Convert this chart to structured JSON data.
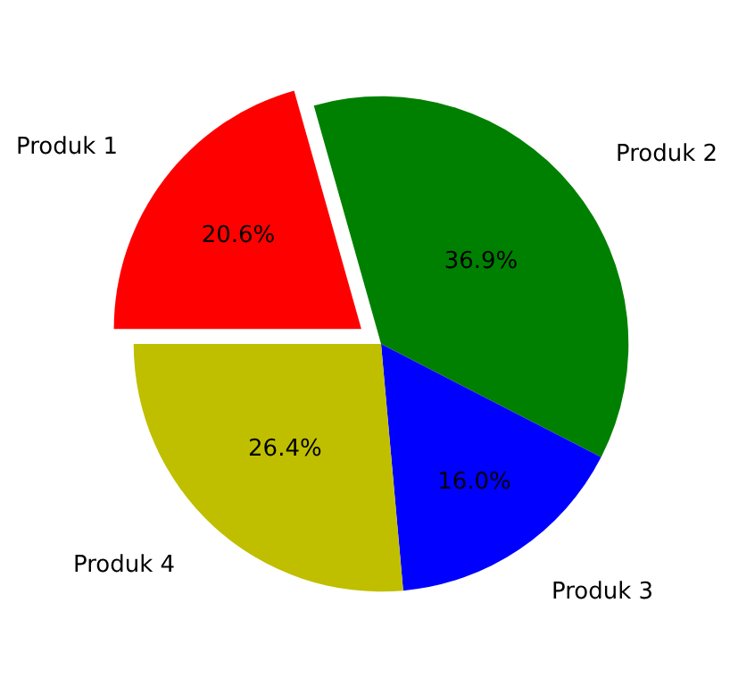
{
  "chart_data": {
    "type": "pie",
    "categories": [
      "Produk 1",
      "Produk 2",
      "Produk 3",
      "Produk 4"
    ],
    "values": [
      20.6,
      36.9,
      16.0,
      26.4
    ],
    "value_labels": [
      "20.6%",
      "36.9%",
      "16.0%",
      "26.4%"
    ],
    "colors": [
      "#ff0000",
      "#008000",
      "#0000ff",
      "#bfbf00"
    ],
    "legend": false
  }
}
